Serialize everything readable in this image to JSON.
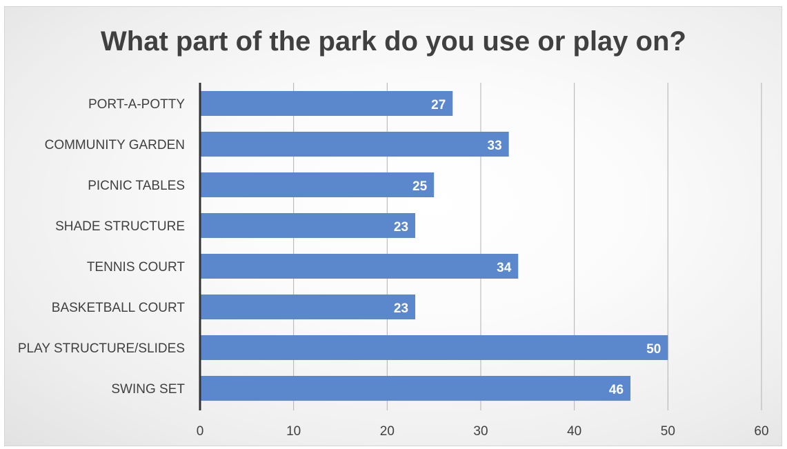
{
  "chart_data": {
    "type": "bar",
    "orientation": "horizontal",
    "title": "What part of the park do you use or play on?",
    "categories": [
      "PORT-A-POTTY",
      "COMMUNITY GARDEN",
      "PICNIC TABLES",
      "SHADE STRUCTURE",
      "TENNIS COURT",
      "BASKETBALL COURT",
      "PLAY STRUCTURE/SLIDES",
      "SWING SET"
    ],
    "values": [
      27,
      33,
      25,
      23,
      34,
      23,
      50,
      46
    ],
    "xlim": [
      0,
      60
    ],
    "xticks": [
      0,
      10,
      20,
      30,
      40,
      50,
      60
    ],
    "xtick_labels": [
      "0",
      "10",
      "20",
      "30",
      "40",
      "50",
      "60"
    ],
    "grid": "vertical",
    "legend": "none",
    "bar_color": "#5b87cc",
    "label_color": "#ffffff"
  }
}
